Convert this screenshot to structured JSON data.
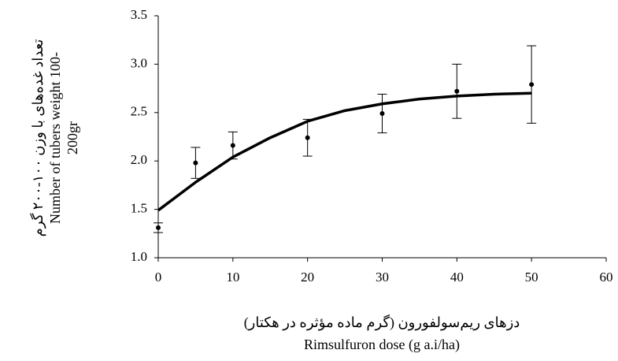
{
  "chart_data": {
    "type": "scatter",
    "x_label": [
      "دزهای ریم‌سولفورون (گرم ماده مؤثره در هکتار)",
      "Rimsulfuron dose (g a.i/ha)"
    ],
    "y_label": [
      "تعداد غده‌های با وزن ۱۰۰-۲۰۰ گرم",
      "Number of tubers weight 100-",
      "200gr"
    ],
    "xlim": [
      0,
      60
    ],
    "xticks": [
      0,
      10,
      20,
      30,
      40,
      50,
      60
    ],
    "ylim": [
      1.0,
      3.5
    ],
    "yticks": [
      {
        "value": 1.0,
        "label": "1.0"
      },
      1.5,
      {
        "value": 2.0,
        "label": "2.0"
      },
      2.5,
      {
        "value": 3.0,
        "label": "3.0"
      },
      3.5
    ],
    "series": [
      {
        "kind": "points",
        "color": "#000000",
        "x": [
          0,
          5,
          10,
          20,
          30,
          40,
          50
        ],
        "values": [
          1.31,
          1.98,
          2.16,
          2.24,
          2.49,
          2.72,
          2.79
        ],
        "errors": [
          0.05,
          0.16,
          0.14,
          0.19,
          0.2,
          0.28,
          0.4
        ]
      },
      {
        "kind": "line",
        "color": "#000000",
        "x": [
          0,
          5,
          10,
          15,
          20,
          25,
          30,
          35,
          40,
          45,
          50
        ],
        "values": [
          1.49,
          1.78,
          2.04,
          2.24,
          2.41,
          2.52,
          2.59,
          2.64,
          2.67,
          2.69,
          2.7
        ]
      }
    ]
  }
}
